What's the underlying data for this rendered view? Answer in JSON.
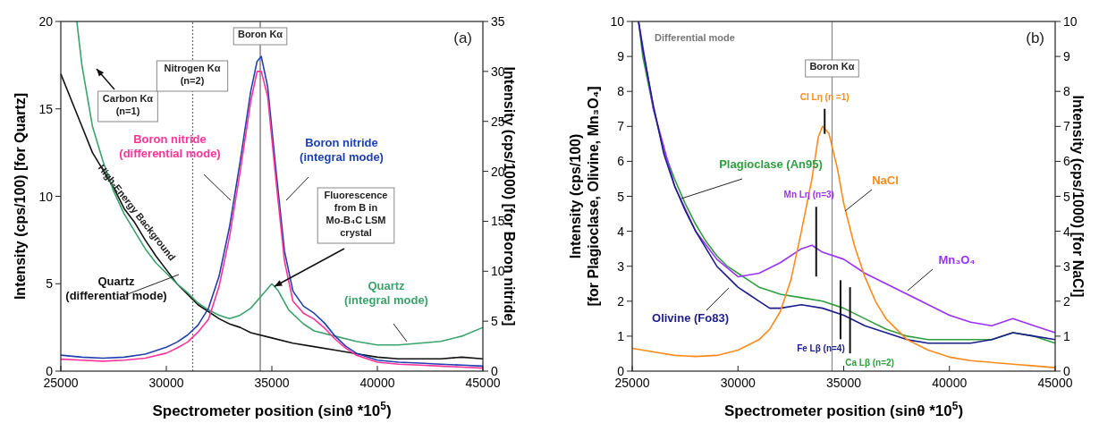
{
  "chart_data": [
    {
      "type": "line",
      "xlabel": "Spectrometer position (sinθ *10$^{5}$)",
      "ylabel": "Intensity (cps/100) [for Quartz]",
      "y2label": "Intensity (cps/1000) [for Boron nitride]",
      "xlim": [
        25000,
        45000
      ],
      "xticks": [
        25000,
        30000,
        35000,
        40000,
        45000
      ],
      "ylim": [
        0,
        20
      ],
      "yticks": [
        0,
        5,
        10,
        15,
        20
      ],
      "y2lim": [
        0,
        35
      ],
      "y2ticks": [
        0,
        5,
        10,
        15,
        20,
        25,
        30,
        35
      ],
      "grid": false,
      "series": [
        {
          "name": "Quartz (differential mode)",
          "color": "#111111",
          "x": [
            25000,
            25500,
            26000,
            26500,
            27000,
            27500,
            28000,
            28500,
            29000,
            29500,
            30000,
            30500,
            31000,
            31500,
            32000,
            32500,
            33000,
            33500,
            34000,
            35000,
            36000,
            37000,
            38000,
            39000,
            40000,
            41000,
            42000,
            43000,
            44000,
            45000
          ],
          "values": [
            17,
            15.5,
            14,
            12.5,
            11.5,
            10.5,
            9.3,
            8.5,
            7.5,
            6.6,
            5.8,
            5,
            4.4,
            3.8,
            3.4,
            3,
            2.7,
            2.5,
            2.2,
            1.9,
            1.6,
            1.4,
            1.2,
            1,
            0.8,
            0.7,
            0.7,
            0.7,
            0.8,
            0.7
          ]
        },
        {
          "name": "Quartz (integral mode)",
          "color": "#3aa36b",
          "x": [
            25760,
            26000,
            26500,
            27000,
            27500,
            28000,
            28500,
            29000,
            29500,
            30000,
            30500,
            31000,
            31500,
            32000,
            32500,
            33000,
            33500,
            34000,
            34500,
            35000,
            35300,
            35800,
            36500,
            37000,
            38000,
            39000,
            40000,
            41000,
            42000,
            43000,
            44000,
            45000
          ],
          "values": [
            20,
            17.5,
            14,
            12,
            10.3,
            9,
            8,
            7,
            6.2,
            5.6,
            5,
            4.5,
            3.9,
            3.5,
            3.2,
            3,
            3.2,
            3.6,
            4.3,
            5,
            4.6,
            3.5,
            2.7,
            2.3,
            2,
            1.7,
            1.5,
            1.5,
            1.6,
            1.7,
            2,
            2.5
          ]
        },
        {
          "name": "Boron nitride (integral mode)",
          "color": "#2040b0",
          "axis": "y2",
          "x": [
            25000,
            26000,
            27000,
            28000,
            29000,
            30000,
            30500,
            31000,
            31500,
            32000,
            32500,
            33000,
            33500,
            34000,
            34300,
            34500,
            34800,
            35200,
            35600,
            36000,
            36500,
            37000,
            37500,
            38000,
            38500,
            39000,
            40000,
            41000,
            42000,
            43000,
            44000,
            45000
          ],
          "values": [
            1.6,
            1.4,
            1.3,
            1.4,
            1.7,
            2.4,
            2.9,
            3.6,
            4.6,
            6.3,
            9.5,
            14.5,
            21,
            28,
            31,
            31.5,
            28.5,
            20,
            12,
            8,
            6.5,
            5.8,
            4.8,
            3.5,
            2.5,
            1.8,
            1.1,
            0.9,
            0.8,
            0.7,
            0.6,
            0.5
          ]
        },
        {
          "name": "Boron nitride (differential mode)",
          "color": "#ff3399",
          "axis": "y2",
          "x": [
            25000,
            26000,
            27000,
            28000,
            29000,
            30000,
            30500,
            31000,
            31500,
            32000,
            32500,
            33000,
            33500,
            34000,
            34300,
            34500,
            34800,
            35200,
            35600,
            36000,
            36500,
            37000,
            37500,
            38000,
            38500,
            39000,
            40000,
            41000,
            42000,
            43000,
            44000,
            45000
          ],
          "values": [
            1.2,
            1.1,
            1,
            1.1,
            1.3,
            1.8,
            2.3,
            2.9,
            3.9,
            5.2,
            8.5,
            13.5,
            20,
            27,
            30,
            30,
            27.5,
            19,
            11,
            7,
            5.8,
            5.2,
            4.3,
            3.2,
            2.3,
            1.6,
            0.9,
            0.7,
            0.6,
            0.5,
            0.4,
            0.3
          ]
        }
      ],
      "ref_lines": [
        {
          "axis": "x",
          "value": 31250,
          "color": "#666666",
          "line_style": "dotted"
        },
        {
          "axis": "x",
          "value": 34450,
          "label": "Boron Kα",
          "color": "#666666",
          "line_style": "solid"
        }
      ],
      "annotations": [
        "(a)",
        "Carbon Kα (n=1)",
        "High-Energy Background",
        {
          "text": "Fluorescence from B in Mo-B₄C LSM crystal",
          "x": 35000,
          "y": 5
        },
        "Nitrogen Kα (n=2)"
      ]
    },
    {
      "type": "line",
      "xlabel": "Spectrometer position (sinθ *10$^{5}$)",
      "ylabel": "Intensity (cps/100) [for Plagioclase, Olivine, Mn₃O₄]",
      "y2label": "Intensity (cps/1000) [for NaCl]",
      "xlim": [
        25000,
        45000
      ],
      "xticks": [
        25000,
        30000,
        35000,
        40000,
        45000
      ],
      "ylim": [
        0,
        10
      ],
      "yticks": [
        0,
        1,
        2,
        3,
        4,
        5,
        6,
        7,
        8,
        9,
        10
      ],
      "y2lim": [
        0,
        10
      ],
      "y2ticks": [
        0,
        1,
        2,
        3,
        4,
        5,
        6,
        7,
        8,
        9,
        10
      ],
      "grid": false,
      "series": [
        {
          "name": "Plagioclase (An95)",
          "color": "#2e9e3e",
          "x": [
            25300,
            25500,
            26000,
            26500,
            27000,
            27500,
            28000,
            28500,
            29000,
            29500,
            30000,
            30500,
            31000,
            31500,
            32000,
            33000,
            34000,
            35000,
            36000,
            37000,
            38000,
            39000,
            40000,
            41000,
            42000,
            43000,
            44000,
            45000
          ],
          "values": [
            10,
            9,
            7.5,
            6.3,
            5.5,
            4.8,
            4.2,
            3.7,
            3.3,
            3,
            2.8,
            2.6,
            2.4,
            2.3,
            2.2,
            2.1,
            2,
            1.8,
            1.5,
            1.2,
            1,
            0.9,
            0.9,
            0.9,
            0.9,
            1.1,
            1,
            0.8
          ]
        },
        {
          "name": "Mn₃O₄",
          "color": "#9b30ff",
          "x": [
            25300,
            26000,
            27000,
            28000,
            29000,
            30000,
            31000,
            32000,
            33000,
            33500,
            34000,
            35000,
            36000,
            37000,
            38000,
            39000,
            40000,
            41000,
            42000,
            43000,
            44000,
            45000
          ],
          "values": [
            10,
            7.5,
            5.3,
            4,
            3.2,
            2.7,
            2.8,
            3.1,
            3.5,
            3.6,
            3.4,
            3.2,
            2.8,
            2.5,
            2.2,
            1.9,
            1.6,
            1.4,
            1.3,
            1.5,
            1.3,
            1.1
          ]
        },
        {
          "name": "Olivine (Fo83)",
          "color": "#1c1c8c",
          "x": [
            25300,
            25500,
            26000,
            26500,
            27000,
            27500,
            28000,
            28500,
            29000,
            29500,
            30000,
            30500,
            31000,
            31500,
            32000,
            33000,
            34000,
            35000,
            36000,
            37000,
            38000,
            39000,
            40000,
            41000,
            42000,
            43000,
            44000,
            45000
          ],
          "values": [
            10,
            9.2,
            7.6,
            6.2,
            5.3,
            4.6,
            4,
            3.5,
            3,
            2.7,
            2.4,
            2.2,
            2,
            1.8,
            1.8,
            1.9,
            1.8,
            1.6,
            1.3,
            1.1,
            0.9,
            0.8,
            0.8,
            0.8,
            0.9,
            1.1,
            1,
            0.9
          ]
        },
        {
          "name": "NaCl",
          "color": "#ff8a1a",
          "axis": "y2",
          "x": [
            25000,
            26000,
            27000,
            28000,
            29000,
            30000,
            31000,
            31500,
            32000,
            32500,
            33000,
            33500,
            33800,
            34000,
            34300,
            34700,
            35000,
            35500,
            36000,
            36500,
            37000,
            38000,
            39000,
            40000,
            41000,
            42000,
            43000,
            44000,
            45000
          ],
          "values": [
            0.65,
            0.55,
            0.45,
            0.42,
            0.45,
            0.6,
            0.9,
            1.2,
            1.7,
            2.6,
            4,
            5.5,
            6.7,
            7,
            6.8,
            5.8,
            4.8,
            3.6,
            2.7,
            2,
            1.5,
            0.9,
            0.6,
            0.4,
            0.3,
            0.25,
            0.2,
            0.15,
            0.1
          ]
        }
      ],
      "ref_lines": [
        {
          "axis": "x",
          "value": 34450,
          "label": "Boron Kα",
          "color": "#888888",
          "line_style": "solid"
        }
      ],
      "annotations": [
        "(b)",
        "Differential mode",
        "Cl Lη (n =1)",
        "Mn Lη (n=3)",
        "Fe Lβ (n=4)",
        "Ca Lβ (n=2)"
      ]
    }
  ]
}
